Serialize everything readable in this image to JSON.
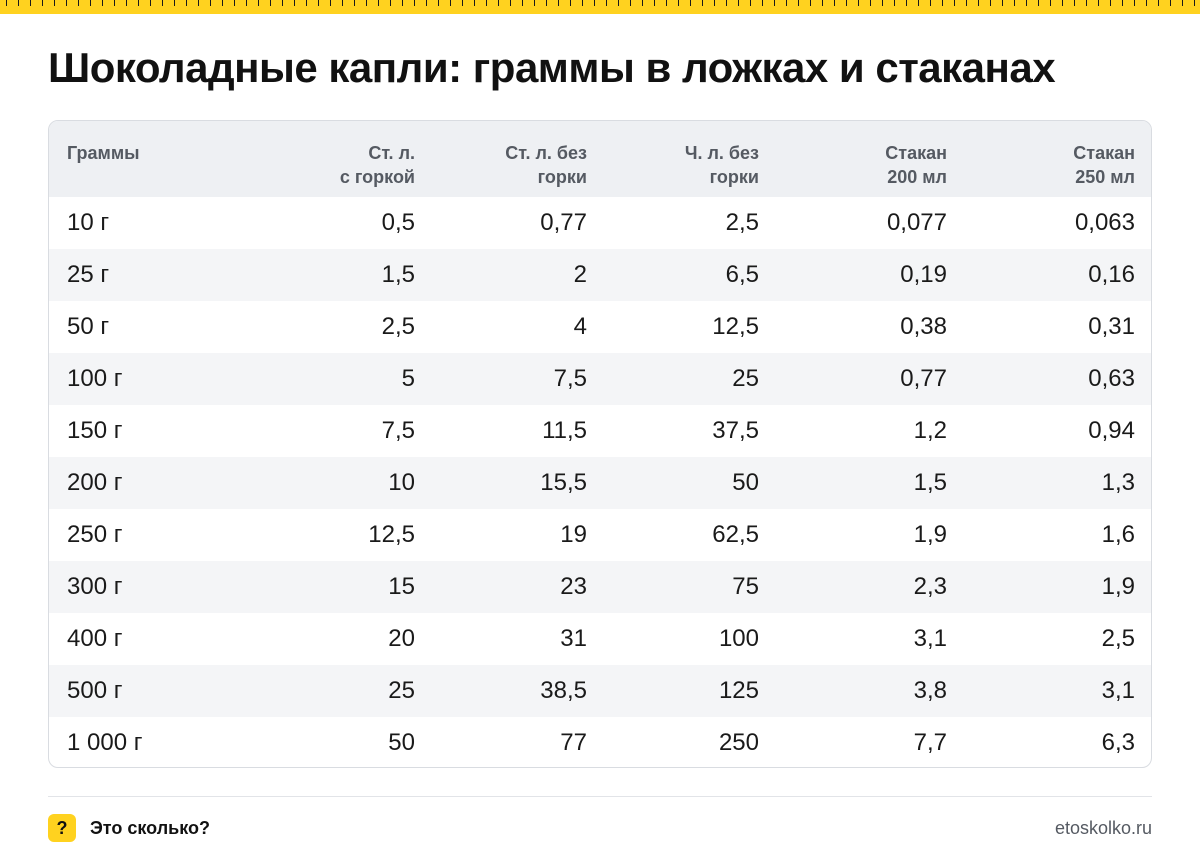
{
  "title": "Шоколадные капли: граммы в ложках и стаканах",
  "colors": {
    "accent": "#ffd21f",
    "header_bg": "#eef0f3",
    "stripe_bg": "#f4f5f7"
  },
  "table": {
    "headers": [
      [
        "Граммы"
      ],
      [
        "Ст. л.",
        "с горкой"
      ],
      [
        "Ст. л. без",
        "горки"
      ],
      [
        "Ч. л. без",
        "горки"
      ],
      [
        "Стакан",
        "200 мл"
      ],
      [
        "Стакан",
        "250 мл"
      ]
    ],
    "rows": [
      [
        "10 г",
        "0,5",
        "0,77",
        "2,5",
        "0,077",
        "0,063"
      ],
      [
        "25 г",
        "1,5",
        "2",
        "6,5",
        "0,19",
        "0,16"
      ],
      [
        "50 г",
        "2,5",
        "4",
        "12,5",
        "0,38",
        "0,31"
      ],
      [
        "100 г",
        "5",
        "7,5",
        "25",
        "0,77",
        "0,63"
      ],
      [
        "150 г",
        "7,5",
        "11,5",
        "37,5",
        "1,2",
        "0,94"
      ],
      [
        "200 г",
        "10",
        "15,5",
        "50",
        "1,5",
        "1,3"
      ],
      [
        "250 г",
        "12,5",
        "19",
        "62,5",
        "1,9",
        "1,6"
      ],
      [
        "300 г",
        "15",
        "23",
        "75",
        "2,3",
        "1,9"
      ],
      [
        "400 г",
        "20",
        "31",
        "100",
        "3,1",
        "2,5"
      ],
      [
        "500 г",
        "25",
        "38,5",
        "125",
        "3,8",
        "3,1"
      ],
      [
        "1 000 г",
        "50",
        "77",
        "250",
        "7,7",
        "6,3"
      ]
    ]
  },
  "footer": {
    "badge_icon": "?",
    "brand": "Это сколько?",
    "site": "etoskolko.ru"
  }
}
